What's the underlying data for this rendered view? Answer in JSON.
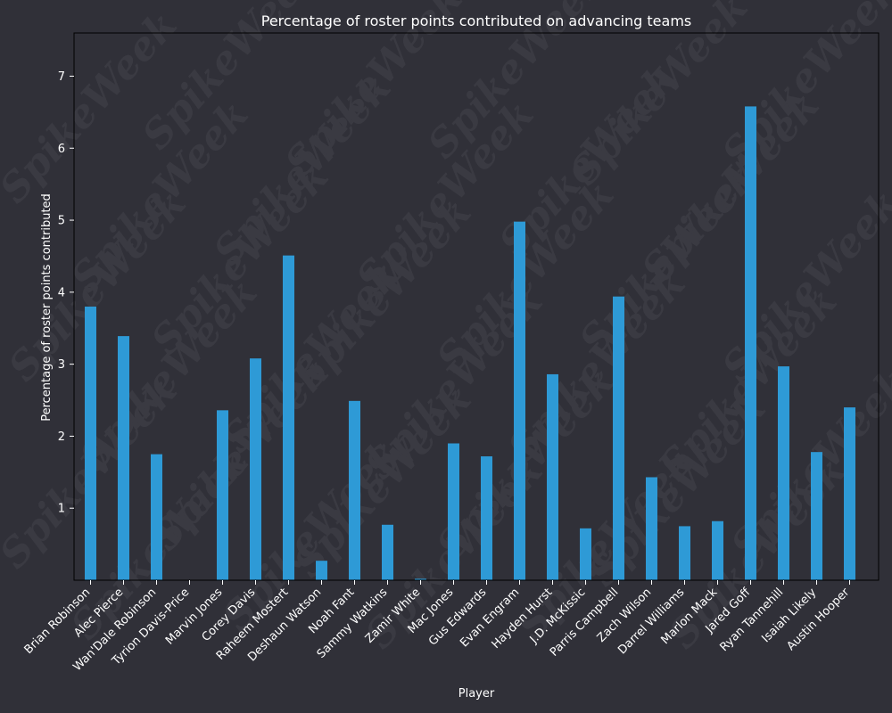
{
  "colors": {
    "background": "#303038",
    "bar": "#2e9ad6",
    "text": "#ffffff",
    "axis": "#000000"
  },
  "watermark_text": "SpikeWeek",
  "chart_data": {
    "type": "bar",
    "title": "Percentage of roster points contributed on advancing teams",
    "xlabel": "Player",
    "ylabel": "Percentage of roster points contributed",
    "ylim": [
      0,
      7.6
    ],
    "yticks": [
      1,
      2,
      3,
      4,
      5,
      6,
      7
    ],
    "categories": [
      "Brian Robinson",
      "Alec Pierce",
      "Wan'Dale Robinson",
      "Tyrion Davis-Price",
      "Marvin Jones",
      "Corey Davis",
      "Raheem Mostert",
      "Deshaun Watson",
      "Noah Fant",
      "Sammy Watkins",
      "Zamir White",
      "Mac Jones",
      "Gus Edwards",
      "Evan Engram",
      "Hayden Hurst",
      "J.D. McKissic",
      "Parris Campbell",
      "Zach Wilson",
      "Darrel Williams",
      "Marlon Mack",
      "Jared Goff",
      "Ryan Tannehill",
      "Isaiah Likely",
      "Austin Hooper"
    ],
    "values": [
      3.8,
      3.39,
      1.75,
      0.0,
      2.36,
      3.08,
      4.51,
      0.27,
      2.49,
      0.77,
      0.02,
      1.9,
      1.72,
      4.98,
      2.86,
      0.72,
      3.94,
      1.43,
      0.75,
      0.82,
      6.58,
      2.97,
      1.78,
      2.4
    ],
    "grid": false,
    "legend": "none"
  }
}
